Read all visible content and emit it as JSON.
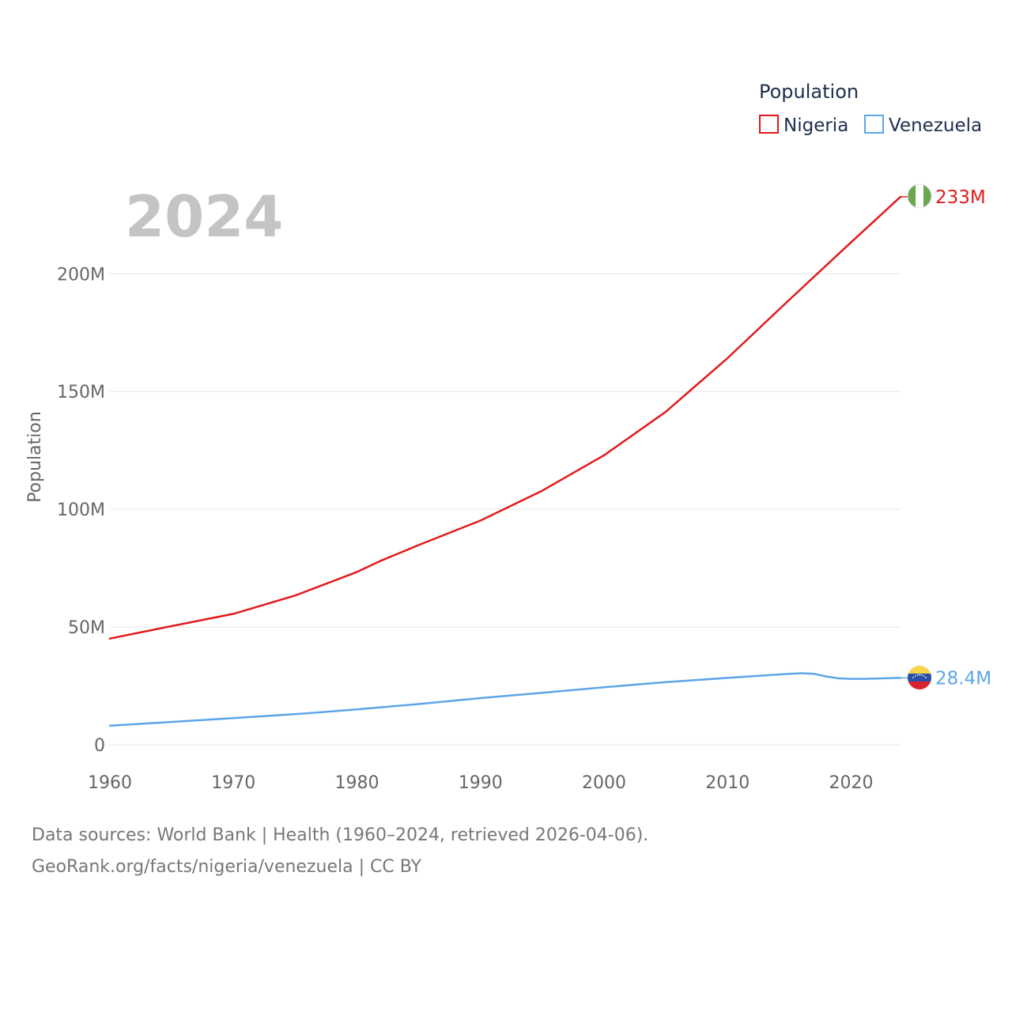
{
  "chart_data": {
    "type": "line",
    "title": "Population",
    "ylabel": "Population",
    "xlabel": "",
    "year_label": "2024",
    "xlim": [
      1960,
      2024
    ],
    "ylim": [
      0,
      233000000
    ],
    "x_ticks": [
      1960,
      1970,
      1980,
      1990,
      2000,
      2010,
      2020
    ],
    "x_tick_labels": [
      "1960",
      "1970",
      "1980",
      "1990",
      "2000",
      "2010",
      "2020"
    ],
    "y_ticks": [
      0,
      50000000,
      100000000,
      150000000,
      200000000
    ],
    "y_tick_labels": [
      "0",
      "50M",
      "100M",
      "150M",
      "200M"
    ],
    "grid": true,
    "legend": {
      "title": "Population",
      "position": "top-right"
    },
    "series": [
      {
        "name": "Nigeria",
        "color": "#e31a1c",
        "end_label": "233M",
        "flag": "nigeria-flag",
        "points": [
          [
            1960,
            45.1
          ],
          [
            1965,
            50.4
          ],
          [
            1970,
            55.6
          ],
          [
            1975,
            63.4
          ],
          [
            1980,
            73.4
          ],
          [
            1982,
            78.3
          ],
          [
            1985,
            84.8
          ],
          [
            1990,
            95.2
          ],
          [
            1995,
            107.9
          ],
          [
            2000,
            122.9
          ],
          [
            2005,
            141.4
          ],
          [
            2010,
            164.2
          ],
          [
            2015,
            189.0
          ],
          [
            2020,
            213.4
          ],
          [
            2024,
            232.7
          ]
        ]
      },
      {
        "name": "Venezuela",
        "color": "#5da5e8",
        "end_label": "28.4M",
        "flag": "venezuela-flag",
        "points": [
          [
            1960,
            8.1
          ],
          [
            1965,
            9.7
          ],
          [
            1970,
            11.3
          ],
          [
            1975,
            13.0
          ],
          [
            1980,
            15.0
          ],
          [
            1985,
            17.3
          ],
          [
            1990,
            19.8
          ],
          [
            1995,
            22.1
          ],
          [
            2000,
            24.4
          ],
          [
            2005,
            26.6
          ],
          [
            2010,
            28.4
          ],
          [
            2015,
            30.1
          ],
          [
            2016,
            30.4
          ],
          [
            2017,
            30.1
          ],
          [
            2018,
            29.0
          ],
          [
            2019,
            28.2
          ],
          [
            2020,
            28.0
          ],
          [
            2021,
            28.0
          ],
          [
            2022,
            28.1
          ],
          [
            2024,
            28.4
          ]
        ]
      }
    ]
  },
  "footer": {
    "source_line": "Data sources: World Bank | Health (1960–2024, retrieved 2026-04-06).",
    "url_line": "GeoRank.org/facts/nigeria/venezuela | CC BY"
  }
}
